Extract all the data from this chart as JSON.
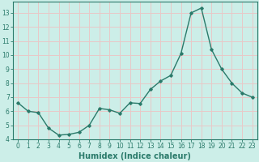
{
  "title": "",
  "xlabel": "Humidex (Indice chaleur)",
  "ylabel": "",
  "x": [
    0,
    1,
    2,
    3,
    4,
    5,
    6,
    7,
    8,
    9,
    10,
    11,
    12,
    13,
    14,
    15,
    16,
    17,
    18,
    19,
    20,
    21,
    22,
    23
  ],
  "y": [
    6.6,
    6.0,
    5.9,
    4.8,
    4.3,
    4.35,
    4.5,
    5.0,
    6.2,
    6.1,
    5.85,
    6.6,
    6.55,
    7.55,
    8.15,
    8.55,
    10.1,
    13.0,
    13.35,
    10.4,
    9.0,
    8.0,
    7.3,
    7.0
  ],
  "line_color": "#2a7a6a",
  "marker": "D",
  "marker_size": 1.8,
  "line_width": 1.0,
  "xlim": [
    -0.5,
    23.5
  ],
  "ylim": [
    4.0,
    13.8
  ],
  "yticks": [
    4,
    5,
    6,
    7,
    8,
    9,
    10,
    11,
    12,
    13
  ],
  "xticks": [
    0,
    1,
    2,
    3,
    4,
    5,
    6,
    7,
    8,
    9,
    10,
    11,
    12,
    13,
    14,
    15,
    16,
    17,
    18,
    19,
    20,
    21,
    22,
    23
  ],
  "bg_color": "#cceee8",
  "grid_color": "#e8c8c8",
  "tick_label_fontsize": 5.5,
  "xlabel_fontsize": 7.0,
  "spine_color": "#2a7a6a",
  "text_color": "#2a7a6a"
}
